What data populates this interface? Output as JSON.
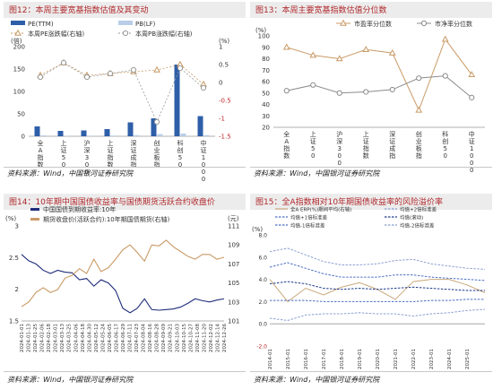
{
  "panels": [
    {
      "title": "图12：本周主要宽基指数估值及其变动",
      "source": "资料来源：Wind，中国银河证券研究院"
    },
    {
      "title": "图13：本周主要宽基指数估值分位数",
      "source": "资料来源：Wind，中国银河证券研究院"
    },
    {
      "title": "图14：10年期中国国债收益率与国债期货活跃合约收盘价",
      "source": "资料来源：Wind，中国银河证券研究院"
    },
    {
      "title": "图15：全A指数相对10年期国债收益率的风险溢价率",
      "source": "资料来源：Wind，中国银河证券研究院"
    }
  ],
  "chart_data": [
    {
      "type": "bar",
      "categories": [
        "全A指数",
        "上证50",
        "沪深300",
        "上证指数",
        "深证成指",
        "创业板指",
        "科创50",
        "中证1000"
      ],
      "series": [
        {
          "name": "PE(TTM)",
          "type": "bar",
          "axis": "left",
          "color": "#2e5ea8",
          "values": [
            22,
            12,
            13,
            16,
            31,
            40,
            160,
            45
          ]
        },
        {
          "name": "PB(LF)",
          "type": "bar",
          "axis": "left",
          "color": "#b9cde8",
          "values": [
            2.0,
            1.2,
            1.4,
            1.5,
            2.6,
            4.8,
            6.0,
            2.6
          ]
        },
        {
          "name": "本周PE涨跌幅(右轴)",
          "type": "line",
          "axis": "right",
          "color": "#c99a66",
          "values": [
            0.2,
            0.55,
            0.2,
            0.25,
            0.3,
            0.35,
            0.5,
            -0.05
          ]
        },
        {
          "name": "本周PB涨跌幅(右轴)",
          "type": "line",
          "axis": "right",
          "color": "#999999",
          "values": [
            0.15,
            0.55,
            0.15,
            0.25,
            0.35,
            -1.1,
            0.4,
            -0.15
          ]
        }
      ],
      "y_unit": "(倍)",
      "y2_unit": "(%)",
      "ylim": [
        0,
        200
      ],
      "yticks": [
        0,
        50,
        100,
        150,
        200
      ],
      "y2lim": [
        -1.5,
        1.0
      ],
      "y2ticks": [
        1,
        0.5,
        0,
        -0.5,
        -1,
        -1.5
      ],
      "y2tick_labels": [
        "1",
        "0.5",
        "0",
        "-0.5",
        "-1",
        "-1.5"
      ]
    },
    {
      "type": "line",
      "categories": [
        "全A指数",
        "上证50",
        "沪深300",
        "上证指数",
        "深证成指",
        "创业板指",
        "科创50",
        "中证1000"
      ],
      "series": [
        {
          "name": "市盈率分位数",
          "color": "#c99a66",
          "marker": "triangle",
          "values": [
            90,
            83,
            80,
            88,
            85,
            35,
            97,
            66
          ]
        },
        {
          "name": "市净率分位数",
          "color": "#8c8c8c",
          "marker": "circle",
          "values": [
            52,
            57,
            50,
            51,
            53,
            63,
            65,
            46
          ]
        }
      ],
      "y_unit": "(%)",
      "ylim": [
        20,
        100
      ],
      "yticks": [
        20,
        30,
        40,
        50,
        60,
        70,
        80,
        90,
        100
      ]
    },
    {
      "type": "line",
      "x": [
        "2024-01-01",
        "2024-02-01",
        "2024-02-26",
        "2024-03-22",
        "2024-04-17",
        "2024-05-13",
        "2024-06-07",
        "2024-07-03",
        "2024-07-29",
        "2024-08-23",
        "2024-09-18",
        "2024-10-14",
        "2024-11-08",
        "2024-12-04",
        "2024-12-30",
        "2025-01-24",
        "2025-02-19",
        "2025-03-17",
        "2025-04-11",
        "2025-05-07",
        "2025-06-02",
        "2025-06-27",
        "2025-07-23",
        "2025-08-18",
        "2025-09-12",
        "2025-10-08",
        "2025-11-03",
        "2025-11-28",
        "2025-12-24"
      ],
      "xtick_labels": [
        "2024-01-01",
        "2024-01-13",
        "2024-01-25",
        "2024-02-06",
        "2024-02-18",
        "2024-03-01",
        "2024-03-13",
        "2024-03-25",
        "2024-04-06",
        "2024-04-18",
        "2024-04-30",
        "2024-05-12",
        "2024-05-24",
        "2024-06-05",
        "2024-06-17",
        "2024-06-29",
        "2024-07-11",
        "2024-07-23",
        "2024-08-04",
        "2024-08-16",
        "2024-08-28",
        "2024-09-09",
        "2024-09-21",
        "2024-10-03",
        "2024-10-15",
        "2024-10-27",
        "2024-11-08",
        "2024-11-20",
        "2024-12-02",
        "2024-12-14",
        "2024-12-26"
      ],
      "series": [
        {
          "name": "中国国债到期收益率:10年",
          "color": "#1f2d7a",
          "axis": "left",
          "values": [
            2.55,
            2.45,
            2.4,
            2.3,
            2.25,
            2.3,
            2.27,
            2.26,
            2.15,
            2.17,
            2.05,
            2.15,
            2.1,
            1.98,
            1.7,
            1.63,
            1.7,
            1.85,
            1.68,
            1.67,
            1.68,
            1.69,
            1.72,
            1.78,
            1.85,
            1.82,
            1.8,
            1.83,
            1.85
          ]
        },
        {
          "name": "期货收盘价(活跃合约):10年期国债期货(右轴)",
          "color": "#c99a66",
          "axis": "right",
          "values": [
            102.5,
            103.0,
            104.0,
            104.5,
            104.0,
            104.3,
            105.5,
            105.8,
            106.5,
            106.0,
            107.5,
            106.2,
            106.6,
            107.5,
            108.5,
            109.0,
            108.2,
            107.3,
            109.0,
            108.9,
            109.5,
            108.8,
            108.3,
            107.8,
            107.5,
            108.0,
            108.0,
            107.5,
            107.7
          ]
        }
      ],
      "y_unit": "(%)",
      "y2_unit": "(元)",
      "ylim": [
        1.5,
        3.0
      ],
      "yticks": [
        1.5,
        2.0,
        2.5,
        3.0
      ],
      "ytick_labels": [
        "1.5",
        "2",
        "2.5",
        "3"
      ],
      "y2lim": [
        101,
        111
      ],
      "y2ticks": [
        101,
        103,
        105,
        107,
        109,
        111
      ]
    },
    {
      "type": "line",
      "x": [
        2014,
        2015,
        2016,
        2017,
        2018,
        2019,
        2020,
        2021,
        2022,
        2023,
        2024,
        2025,
        2026
      ],
      "xtick_labels": [
        "2014-01",
        "2015-01",
        "2016-01",
        "2017-01",
        "2018-01",
        "2019-01",
        "2020-01",
        "2021-01",
        "2022-01",
        "2023-01",
        "2024-01",
        "2025-01"
      ],
      "series": [
        {
          "name": "全A ERP(%)期间平均(右轴)",
          "color": "#c9a77a",
          "values": [
            4.0,
            2.0,
            3.2,
            2.6,
            3.3,
            3.7,
            3.1,
            2.2,
            3.8,
            4.0,
            4.0,
            3.5,
            2.8
          ]
        },
        {
          "name": "均值+2倍标准差",
          "color": "#8a9fd0",
          "dash": true,
          "values": [
            6.5,
            6.8,
            6.2,
            5.6,
            5.3,
            5.3,
            5.4,
            5.7,
            5.8,
            5.4,
            5.2,
            5.0,
            4.9
          ]
        },
        {
          "name": "均值+1倍标准差",
          "color": "#4a6ec4",
          "dash": true,
          "values": [
            5.1,
            5.5,
            5.0,
            4.5,
            4.2,
            4.2,
            4.2,
            4.4,
            4.4,
            4.2,
            4.1,
            4.0,
            3.9
          ]
        },
        {
          "name": "均值(滚动)",
          "color": "#1c3a8c",
          "dash": true,
          "values": [
            3.6,
            3.8,
            3.6,
            3.2,
            3.1,
            3.2,
            3.1,
            3.2,
            3.3,
            3.2,
            3.1,
            3.0,
            3.0
          ]
        },
        {
          "name": "均值-1倍标准差",
          "color": "#4a6ec4",
          "dash": true,
          "values": [
            2.1,
            2.1,
            2.1,
            2.0,
            2.0,
            2.0,
            2.0,
            2.0,
            2.0,
            2.1,
            2.1,
            2.2,
            2.2
          ]
        },
        {
          "name": "均值-2倍标准差",
          "color": "#8a9fd0",
          "dash": true,
          "values": [
            0.5,
            0.3,
            0.8,
            0.9,
            0.9,
            1.0,
            0.9,
            0.9,
            0.7,
            0.9,
            1.0,
            1.2,
            1.3
          ]
        }
      ],
      "y_unit": "(%)",
      "ylim": [
        -2,
        8
      ],
      "yticks": [
        -2,
        0,
        2,
        4,
        6,
        8
      ],
      "ytick_labels": [
        "-2.0",
        "0.0",
        "2.0",
        "4.0",
        "6.0",
        "8.0"
      ]
    }
  ]
}
